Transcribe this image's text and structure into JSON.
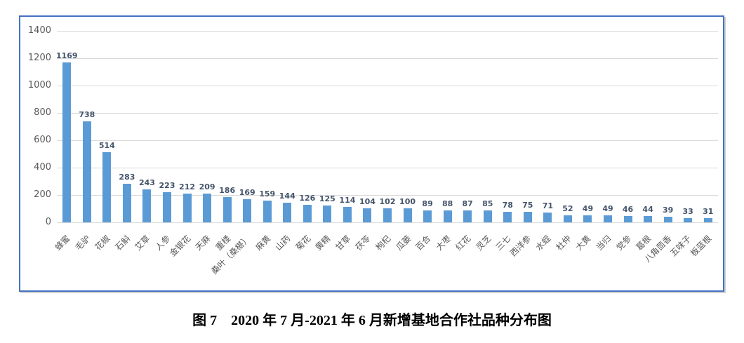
{
  "caption": "图 7　2020 年 7 月-2021 年 6 月新增基地合作社品种分布图",
  "chart_data": {
    "type": "bar",
    "title": "图 7 2020 年 7 月-2021 年 6 月新增基地合作社品种分布图",
    "xlabel": "",
    "ylabel": "",
    "categories": [
      "蜂蜜",
      "毛驴",
      "花椒",
      "石斛",
      "艾草",
      "人参",
      "金银花",
      "天麻",
      "重楼",
      "桑叶（桑椹）",
      "麻黄",
      "山药",
      "菊花",
      "黄精",
      "甘草",
      "茯苓",
      "枸杞",
      "瓜蒌",
      "百合",
      "大枣",
      "红花",
      "灵芝",
      "三七",
      "西洋参",
      "水蛭",
      "杜仲",
      "大黄",
      "当归",
      "党参",
      "葛根",
      "八角茴香",
      "五味子",
      "板蓝根"
    ],
    "values": [
      1169,
      738,
      514,
      283,
      243,
      223,
      212,
      209,
      186,
      169,
      159,
      144,
      126,
      125,
      114,
      104,
      102,
      100,
      89,
      88,
      87,
      85,
      78,
      75,
      71,
      52,
      49,
      49,
      46,
      44,
      39,
      33,
      31
    ],
    "ylim": [
      0,
      1400
    ],
    "ytick_interval": 200,
    "grid": true,
    "legend_position": "none",
    "colors": {
      "bar": "#5B9BD5",
      "value_label": "#44546A",
      "axis_text": "#595959",
      "gridline": "#D9D9D9",
      "frame_border": "#4472C4"
    }
  }
}
